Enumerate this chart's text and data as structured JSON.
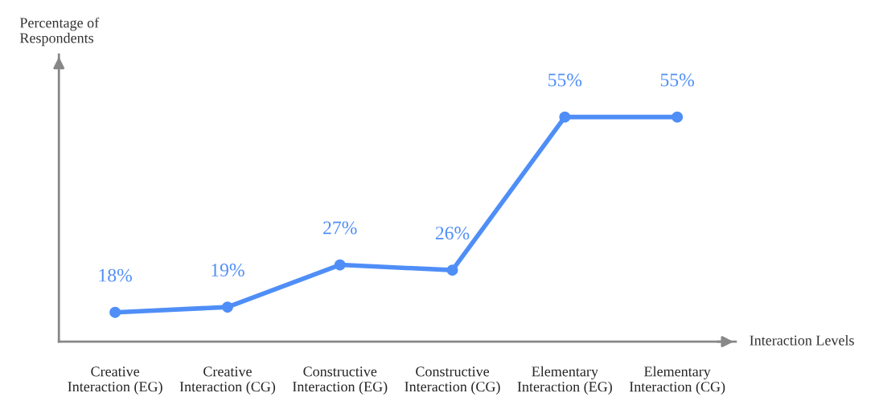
{
  "chart_data": {
    "type": "line",
    "xlabel": "Interaction Levels",
    "ylabel": "Percentage of\nRespondents",
    "categories": [
      "Creative\nInteraction (EG)",
      "Creative\nInteraction (CG)",
      "Constructive\nInteraction (EG)",
      "Constructive\nInteraction (CG)",
      "Elementary\nInteraction (EG)",
      "Elementary\nInteraction (CG)"
    ],
    "series": [
      {
        "color": "#4f8ef7",
        "values": [
          18,
          19,
          27,
          26,
          55,
          55
        ],
        "value_labels": [
          "18%",
          "19%",
          "27%",
          "26%",
          "55%",
          "55%"
        ]
      }
    ],
    "marker": "circle",
    "line_style": "solid",
    "grid": false,
    "legend": false
  }
}
